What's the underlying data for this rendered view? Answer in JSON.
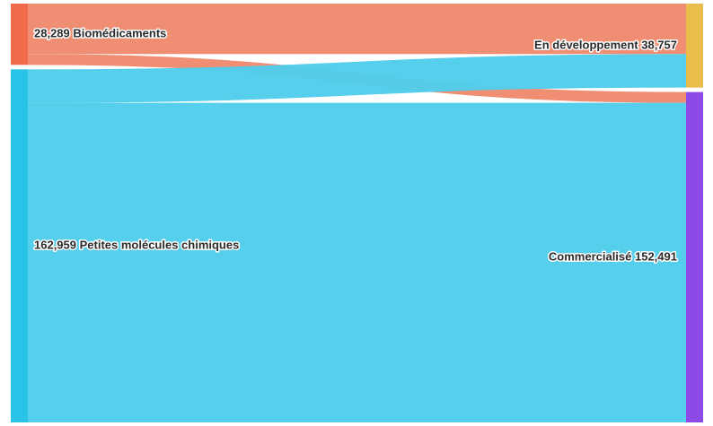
{
  "chart_data": {
    "type": "sankey",
    "title": "",
    "nodes": [
      {
        "id": "bio",
        "name": "Biomédicaments",
        "value": 28289,
        "value_text": "28,289",
        "color": "#ef6b4a",
        "column": 0
      },
      {
        "id": "pmc",
        "name": "Petites molécules chimiques",
        "value": 162959,
        "value_text": "162,959",
        "color": "#29c3e8",
        "column": 0
      },
      {
        "id": "dev",
        "name": "En développement",
        "value": 38757,
        "value_text": "38,757",
        "color": "#ebbd4d",
        "column": 1
      },
      {
        "id": "com",
        "name": "Commercialisé",
        "value": 152491,
        "value_text": "152,491",
        "color": "#8d4ae8",
        "column": 1
      }
    ],
    "links": [
      {
        "source": "bio",
        "target": "dev",
        "value": 23300,
        "color": "#f08a6e"
      },
      {
        "source": "bio",
        "target": "com",
        "value": 4989,
        "color": "#f08a6e"
      },
      {
        "source": "pmc",
        "target": "dev",
        "value": 15457,
        "color": "#4fcdeb"
      },
      {
        "source": "pmc",
        "target": "com",
        "value": 147502,
        "color": "#4fcdeb"
      }
    ]
  }
}
